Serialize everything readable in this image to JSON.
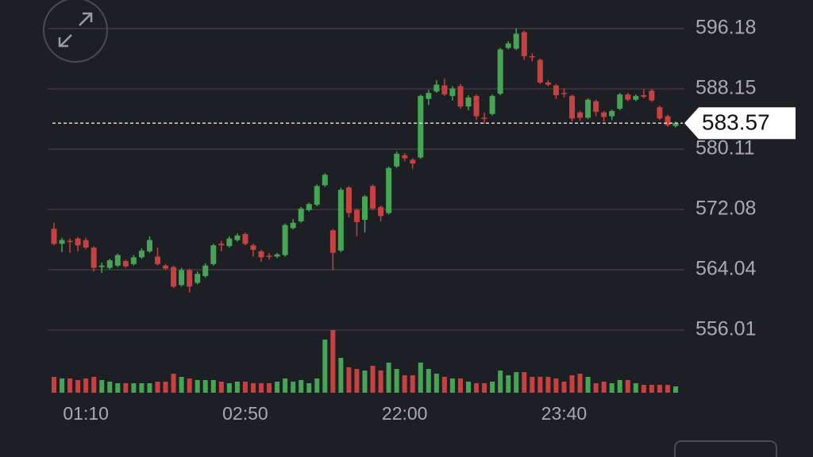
{
  "chart_data": {
    "type": "candlestick",
    "categories": [
      null,
      null,
      null,
      null,
      "01:10",
      null,
      null,
      null,
      null,
      null,
      null,
      null,
      null,
      null,
      null,
      null,
      null,
      null,
      null,
      null,
      null,
      null,
      null,
      null,
      "02:50",
      null,
      null,
      null,
      null,
      null,
      null,
      null,
      null,
      null,
      null,
      null,
      null,
      null,
      null,
      null,
      null,
      null,
      null,
      null,
      "22:00",
      null,
      null,
      null,
      null,
      null,
      null,
      null,
      null,
      null,
      null,
      null,
      null,
      null,
      null,
      null,
      null,
      null,
      null,
      null,
      "23:40",
      null,
      null,
      null,
      null,
      null,
      null,
      null,
      null,
      null,
      null,
      null,
      null,
      null,
      null
    ],
    "open": [
      569.5,
      567.5,
      567.9,
      568.2,
      568.0,
      567.0,
      564.4,
      564.3,
      564.6,
      565.2,
      564.8,
      565.7,
      566.5,
      565.8,
      564.6,
      564.4,
      562.0,
      564.0,
      562.3,
      563.2,
      564.8,
      567.5,
      567.2,
      568.0,
      568.8,
      567.3,
      566.5,
      565.9,
      565.8,
      566.0,
      569.6,
      570.5,
      572.0,
      572.7,
      575.3,
      569.3,
      566.6,
      575.0,
      572.0,
      570.7,
      575.2,
      572.4,
      571.6,
      577.8,
      579.3,
      578.7,
      579.0,
      586.8,
      587.8,
      588.6,
      587.2,
      588.5,
      585.8,
      587.2,
      584.3,
      584.8,
      587.5,
      593.6,
      593.5,
      595.7,
      592.5,
      592.0,
      589.0,
      588.6,
      587.6,
      587.2,
      585.0,
      584.3,
      586.5,
      585.0,
      584.5,
      585.5,
      587.4,
      586.7,
      587.3,
      587.9,
      585.7,
      584.5,
      583.2
    ],
    "high": [
      570.3,
      568.3,
      568.2,
      568.4,
      568.3,
      567.2,
      565.0,
      565.5,
      566.2,
      565.4,
      566.0,
      566.9,
      568.5,
      567.0,
      564.8,
      564.6,
      564.3,
      564.2,
      563.8,
      564.9,
      567.5,
      567.9,
      568.5,
      568.9,
      569.0,
      567.5,
      566.7,
      566.3,
      566.3,
      570.2,
      570.8,
      572.4,
      573.0,
      575.4,
      576.9,
      569.5,
      575.0,
      575.2,
      572.2,
      574.0,
      575.4,
      572.6,
      577.8,
      579.8,
      579.6,
      578.9,
      587.4,
      588.0,
      589.3,
      589.5,
      588.5,
      588.8,
      587.3,
      587.4,
      585.0,
      587.4,
      593.6,
      594.5,
      596.2,
      595.9,
      592.9,
      592.2,
      589.3,
      588.8,
      588.2,
      587.4,
      585.2,
      586.9,
      586.7,
      585.2,
      585.4,
      587.6,
      587.6,
      587.4,
      588.1,
      588.1,
      585.9,
      584.7,
      583.8
    ],
    "low": [
      567.3,
      566.4,
      566.3,
      566.5,
      566.8,
      563.8,
      563.6,
      564.1,
      564.4,
      564.3,
      564.6,
      565.5,
      566.3,
      564.6,
      564.0,
      561.6,
      561.8,
      561.0,
      562.1,
      563.0,
      564.6,
      566.5,
      567.0,
      567.8,
      567.3,
      565.8,
      565.1,
      565.4,
      565.6,
      565.8,
      569.4,
      570.3,
      571.8,
      572.5,
      575.1,
      564.0,
      566.4,
      571.0,
      568.5,
      569.0,
      572.0,
      570.5,
      571.4,
      577.6,
      578.5,
      577.5,
      578.8,
      586.0,
      587.6,
      587.2,
      586.6,
      585.5,
      585.3,
      584.0,
      583.5,
      584.6,
      587.3,
      593.4,
      593.3,
      592.0,
      591.8,
      588.8,
      588.5,
      586.8,
      587.0,
      583.8,
      583.9,
      584.1,
      584.5,
      583.8,
      584.0,
      585.3,
      586.5,
      586.5,
      586.9,
      586.4,
      584.0,
      583.1,
      583.0
    ],
    "close": [
      567.5,
      568.0,
      567.8,
      567.3,
      567.0,
      564.3,
      564.6,
      565.3,
      566.0,
      564.5,
      565.7,
      566.6,
      568.0,
      564.8,
      564.2,
      561.8,
      564.0,
      561.8,
      563.5,
      564.6,
      567.3,
      567.3,
      568.2,
      568.6,
      567.5,
      566.7,
      565.7,
      565.8,
      566.1,
      570.0,
      570.3,
      572.2,
      572.8,
      575.2,
      576.7,
      566.3,
      574.7,
      571.6,
      570.4,
      573.8,
      572.2,
      571.2,
      577.6,
      579.5,
      578.9,
      578.2,
      587.2,
      587.6,
      588.7,
      587.4,
      588.2,
      585.8,
      587.0,
      584.5,
      584.2,
      587.2,
      593.4,
      594.2,
      595.5,
      592.5,
      592.4,
      589.0,
      588.7,
      587.3,
      587.5,
      584.2,
      584.3,
      586.7,
      585.1,
      584.4,
      585.2,
      587.4,
      586.7,
      587.2,
      587.1,
      586.6,
      584.2,
      583.3,
      583.6
    ],
    "volume": [
      20,
      18,
      18,
      16,
      18,
      20,
      16,
      14,
      12,
      12,
      12,
      12,
      12,
      14,
      14,
      24,
      20,
      18,
      16,
      16,
      16,
      14,
      12,
      14,
      14,
      12,
      12,
      12,
      14,
      18,
      14,
      16,
      12,
      18,
      67,
      79,
      44,
      32,
      30,
      28,
      34,
      28,
      38,
      30,
      22,
      22,
      38,
      30,
      24,
      20,
      18,
      18,
      14,
      12,
      12,
      14,
      28,
      22,
      26,
      26,
      20,
      20,
      20,
      18,
      14,
      22,
      24,
      20,
      12,
      14,
      12,
      16,
      16,
      12,
      10,
      10,
      10,
      10,
      8
    ],
    "up_color": "#44a553",
    "down_color": "#c8403f",
    "ylim": [
      556.01,
      596.18
    ],
    "yticks": [
      556.01,
      564.04,
      572.08,
      580.11,
      588.15,
      596.18
    ],
    "grid": true,
    "last_price": 583.57
  }
}
